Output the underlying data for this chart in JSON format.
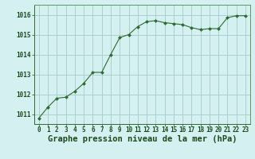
{
  "x": [
    0,
    1,
    2,
    3,
    4,
    5,
    6,
    7,
    8,
    9,
    10,
    11,
    12,
    13,
    14,
    15,
    16,
    17,
    18,
    19,
    20,
    21,
    22,
    23
  ],
  "y": [
    1010.8,
    1011.35,
    1011.8,
    1011.85,
    1012.15,
    1012.55,
    1013.1,
    1013.1,
    1014.0,
    1014.85,
    1015.0,
    1015.4,
    1015.65,
    1015.7,
    1015.6,
    1015.55,
    1015.5,
    1015.35,
    1015.25,
    1015.3,
    1015.3,
    1015.85,
    1015.95,
    1015.95
  ],
  "ylim": [
    1010.5,
    1016.5
  ],
  "yticks": [
    1011,
    1012,
    1013,
    1014,
    1015,
    1016
  ],
  "xlim": [
    -0.5,
    23.5
  ],
  "xticks": [
    0,
    1,
    2,
    3,
    4,
    5,
    6,
    7,
    8,
    9,
    10,
    11,
    12,
    13,
    14,
    15,
    16,
    17,
    18,
    19,
    20,
    21,
    22,
    23
  ],
  "line_color": "#2d6a2d",
  "marker_color": "#2d6a2d",
  "bg_color": "#d4f0f0",
  "grid_color": "#a8cece",
  "xlabel": "Graphe pression niveau de la mer (hPa)",
  "xlabel_color": "#1a4a1a",
  "xlabel_fontsize": 7.5,
  "tick_fontsize": 5.5,
  "ytick_fontsize": 5.5
}
